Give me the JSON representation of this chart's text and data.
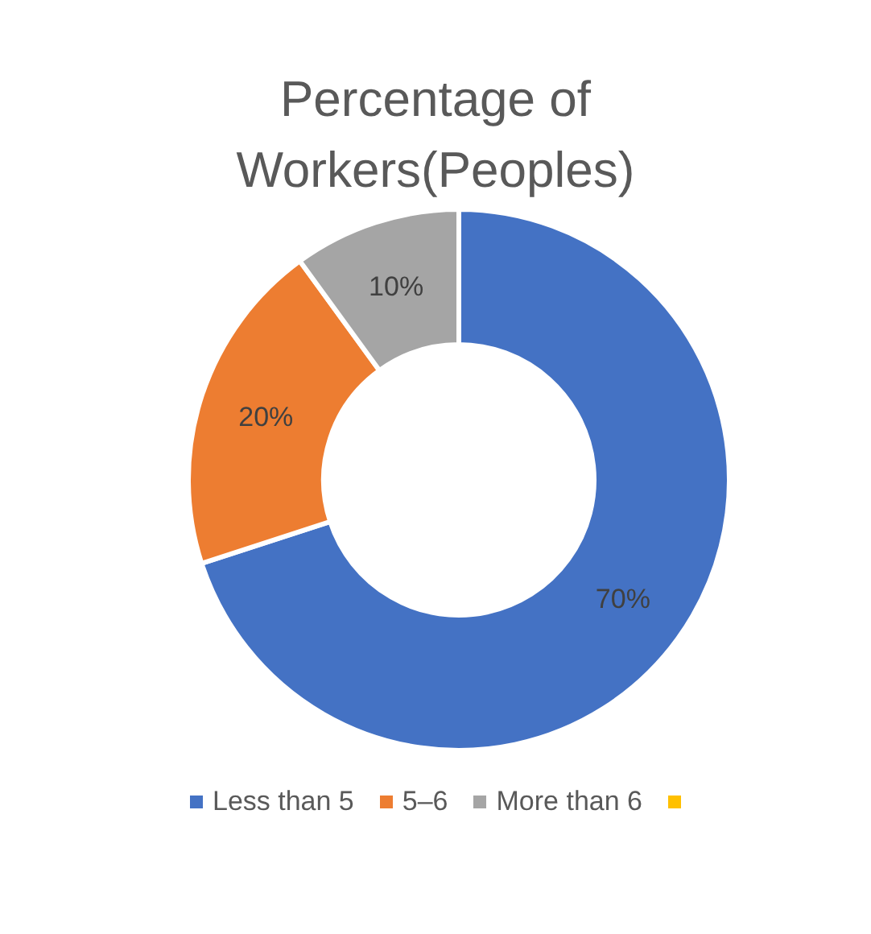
{
  "chart_data": {
    "type": "donut",
    "title": "Percentage of Workers(Peoples)",
    "categories": [
      "Less than 5",
      "5–6",
      "More than 6",
      null
    ],
    "values": [
      70,
      20,
      10,
      0
    ],
    "colors": [
      "#4472c4",
      "#ed7d31",
      "#a5a5a5",
      "#ffc000"
    ],
    "value_labels": [
      "70%",
      "20%",
      "10%",
      null
    ],
    "legend": "bottom"
  }
}
